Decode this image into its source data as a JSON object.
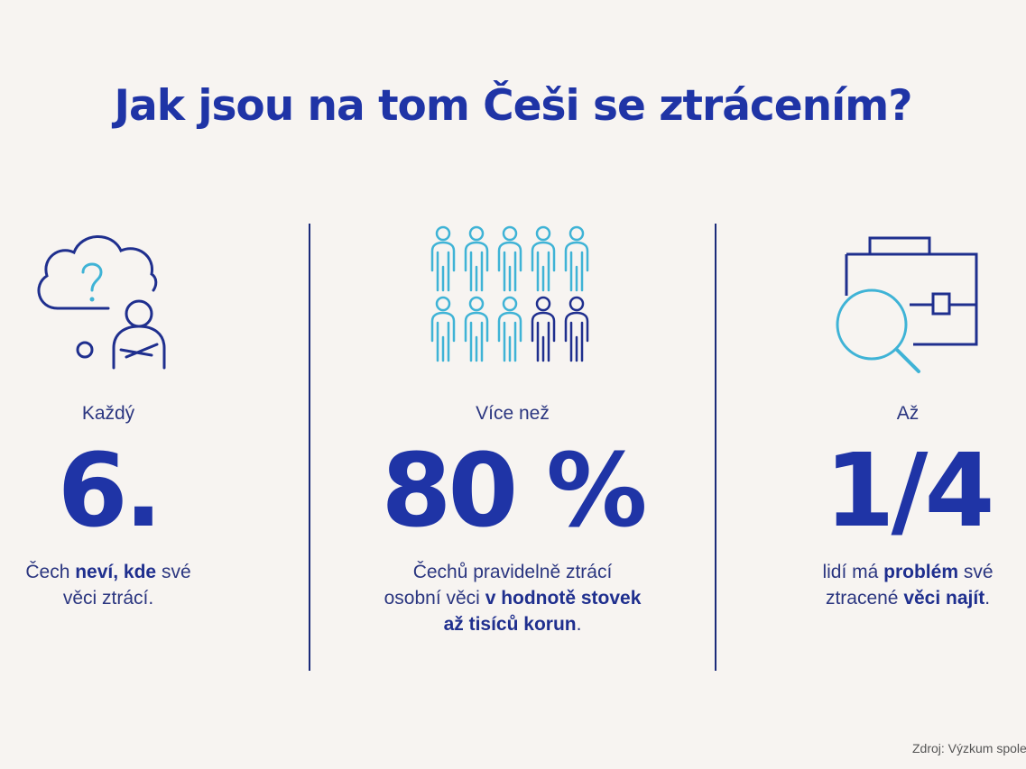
{
  "title": "Jak jsou na tom Češi se ztrácením?",
  "columns": [
    {
      "icon": "thinking-person-icon",
      "intro": "Každý",
      "big": "6.",
      "desc_parts": [
        {
          "text": "Čech ",
          "bold": false
        },
        {
          "text": "neví, kde",
          "bold": true
        },
        {
          "text": " své",
          "bold": false
        },
        {
          "text": "\n",
          "bold": false
        },
        {
          "text": "věci ztrácí.",
          "bold": false
        }
      ]
    },
    {
      "icon": "people-group-icon",
      "intro": "Více než",
      "big": "80 %",
      "people_total": 10,
      "people_highlighted": 8,
      "desc_parts": [
        {
          "text": "Čechů pravidelně ztrácí",
          "bold": false
        },
        {
          "text": "\n",
          "bold": false
        },
        {
          "text": "osobní věci ",
          "bold": false
        },
        {
          "text": "v hodnotě stovek",
          "bold": true
        },
        {
          "text": "\n",
          "bold": false
        },
        {
          "text": "až tisíců korun",
          "bold": true
        },
        {
          "text": ".",
          "bold": false
        }
      ]
    },
    {
      "icon": "briefcase-search-icon",
      "intro": "Až",
      "big": "1/4",
      "desc_parts": [
        {
          "text": "lidí má ",
          "bold": false
        },
        {
          "text": "problém",
          "bold": true
        },
        {
          "text": " své",
          "bold": false
        },
        {
          "text": "\n",
          "bold": false
        },
        {
          "text": "ztracené ",
          "bold": false
        },
        {
          "text": "věci najít",
          "bold": true
        },
        {
          "text": ".",
          "bold": false
        }
      ]
    }
  ],
  "source": "Zdroj: Výzkum společ",
  "colors": {
    "background": "#f7f4f1",
    "title": "#1f34a6",
    "dark_blue": "#1f2f8e",
    "light_blue": "#3fb3d6"
  }
}
